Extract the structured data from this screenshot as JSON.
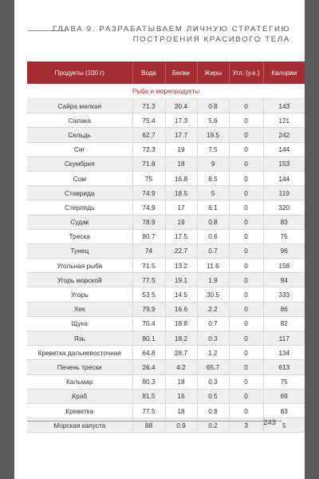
{
  "header": {
    "chapter_line1": "ГЛАВА 9. РАЗРАБАТЫВАЕМ ЛИЧНУЮ СТРАТЕГИЮ",
    "chapter_line2": "ПОСТРОЕНИЯ КРАСИВОГО ТЕЛА"
  },
  "table": {
    "columns": [
      "Продукты (100 г)",
      "Вода",
      "Белки",
      "Жиры",
      "Угл. (у.е.)",
      "Калории"
    ],
    "section": "Рыба и морепродукты",
    "rows": [
      [
        "Сайра мелкая",
        "71.3",
        "20.4",
        "0.8",
        "0",
        "143"
      ],
      [
        "Салака",
        "75.4",
        "17.3",
        "5.6",
        "0",
        "121"
      ],
      [
        "Сельдь",
        "62.7",
        "17.7",
        "19.5",
        "0",
        "242"
      ],
      [
        "Сиг",
        "72.3",
        "19",
        "7.5",
        "0",
        "144"
      ],
      [
        "Скумбрия",
        "71.8",
        "18",
        "9",
        "0",
        "153"
      ],
      [
        "Сом",
        "75",
        "16.8",
        "8.5",
        "0",
        "144"
      ],
      [
        "Ставрида",
        "74.9",
        "18.5",
        "5",
        "0",
        "119"
      ],
      [
        "Стерлядь",
        "74.9",
        "17",
        "6.1",
        "0",
        "320"
      ],
      [
        "Судак",
        "78.9",
        "19",
        "0.8",
        "0",
        "83"
      ],
      [
        "Треска",
        "80.7",
        "17.5",
        "0.6",
        "0",
        "75"
      ],
      [
        "Тунец",
        "74",
        "22.7",
        "0.7",
        "0",
        "96"
      ],
      [
        "Угольная рыба",
        "71.5",
        "13.2",
        "11.6",
        "0",
        "158"
      ],
      [
        "Угорь морской",
        "77.5",
        "19.1",
        "1.9",
        "0",
        "94"
      ],
      [
        "Угорь",
        "53.5",
        "14.5",
        "30.5",
        "0",
        "333"
      ],
      [
        "Хек",
        "79.9",
        "16.6",
        "2.2",
        "0",
        "86"
      ],
      [
        "Щука",
        "70.4",
        "18.8",
        "0.7",
        "0",
        "82"
      ],
      [
        "Язь",
        "80.1",
        "18.2",
        "0.3",
        "0",
        "117"
      ],
      [
        "Креветка дальневосточная",
        "64.8",
        "28.7",
        "1.2",
        "0",
        "134"
      ],
      [
        "Печень трески",
        "26.4",
        "4.2",
        "65.7",
        "0",
        "613"
      ],
      [
        "Кальмар",
        "80.3",
        "18",
        "0.3",
        "0",
        "75"
      ],
      [
        "Краб",
        "81.5",
        "16",
        "0.5",
        "0",
        "69"
      ],
      [
        "Креветка",
        "77.5",
        "18",
        "0.8",
        "0",
        "83"
      ],
      [
        "Морская капуста",
        "88",
        "0.9",
        "0.2",
        "3",
        "5"
      ]
    ]
  },
  "footer": {
    "page_number": "243"
  }
}
